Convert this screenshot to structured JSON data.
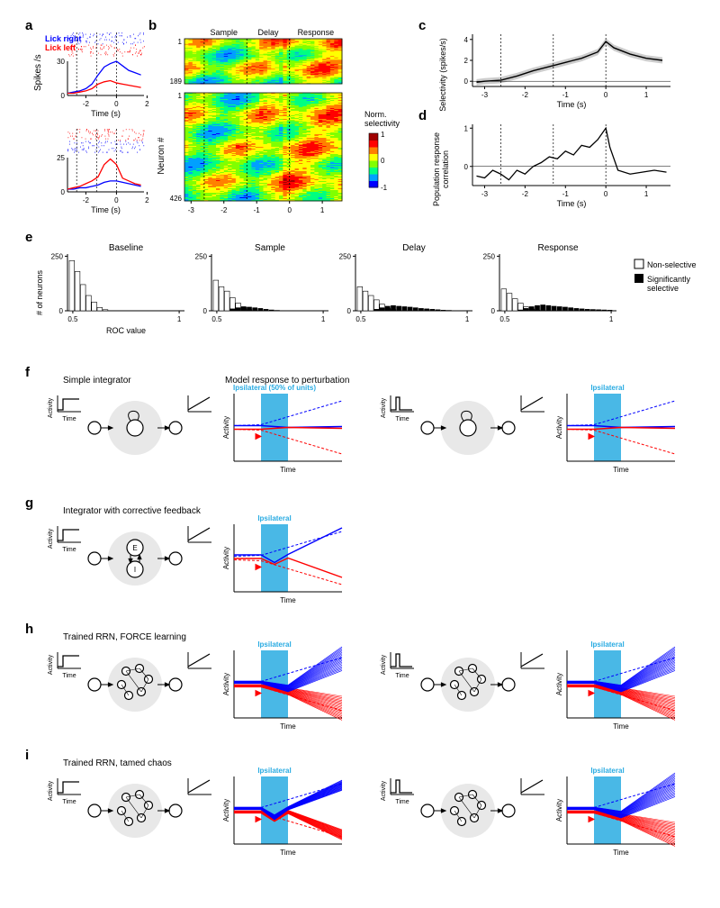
{
  "labels": {
    "a": "a",
    "b": "b",
    "c": "c",
    "d": "d",
    "e": "e",
    "f": "f",
    "g": "g",
    "h": "h",
    "i": "i"
  },
  "colors": {
    "blue": "#0000ff",
    "red": "#ff0000",
    "black": "#000000",
    "cyan_box": "#29abe2",
    "gray_shade": "#cccccc",
    "heatmap": [
      "#0000ff",
      "#00a0ff",
      "#00ff80",
      "#80ff00",
      "#ffff00",
      "#ff8000",
      "#ff0000",
      "#a00000"
    ]
  },
  "panel_a": {
    "lick_right_label": "Lick right",
    "lick_left_label": "Lick left",
    "y_label": "Spikes /s",
    "x_label": "Time (s)",
    "x_ticks": [
      -2,
      0,
      2
    ],
    "y_ticks_top": [
      0,
      30
    ],
    "y_ticks_bottom": [
      0,
      25
    ],
    "top_blue": [
      [
        -3.2,
        2
      ],
      [
        -2.8,
        3
      ],
      [
        -2.4,
        4
      ],
      [
        -2.0,
        6
      ],
      [
        -1.6,
        10
      ],
      [
        -1.2,
        18
      ],
      [
        -0.8,
        25
      ],
      [
        -0.4,
        28
      ],
      [
        0,
        30
      ],
      [
        0.4,
        26
      ],
      [
        0.8,
        22
      ],
      [
        1.2,
        20
      ],
      [
        1.6,
        18
      ]
    ],
    "top_red": [
      [
        -3.2,
        2
      ],
      [
        -2.8,
        2
      ],
      [
        -2.4,
        3
      ],
      [
        -2.0,
        4
      ],
      [
        -1.6,
        6
      ],
      [
        -1.2,
        10
      ],
      [
        -0.8,
        12
      ],
      [
        -0.4,
        13
      ],
      [
        0,
        11
      ],
      [
        0.4,
        10
      ],
      [
        0.8,
        9
      ],
      [
        1.2,
        8
      ],
      [
        1.6,
        7
      ]
    ],
    "bot_red": [
      [
        -3.2,
        2
      ],
      [
        -2.8,
        3
      ],
      [
        -2.4,
        4
      ],
      [
        -2.0,
        6
      ],
      [
        -1.6,
        8
      ],
      [
        -1.2,
        11
      ],
      [
        -0.8,
        20
      ],
      [
        -0.4,
        24
      ],
      [
        0,
        20
      ],
      [
        0.4,
        10
      ],
      [
        0.8,
        8
      ],
      [
        1.2,
        6
      ],
      [
        1.6,
        5
      ]
    ],
    "bot_blue": [
      [
        -3.2,
        2
      ],
      [
        -2.8,
        2
      ],
      [
        -2.4,
        3
      ],
      [
        -2.0,
        3
      ],
      [
        -1.6,
        4
      ],
      [
        -1.2,
        5
      ],
      [
        -0.8,
        7
      ],
      [
        -0.4,
        8
      ],
      [
        0,
        8
      ],
      [
        0.4,
        7
      ],
      [
        0.8,
        6
      ],
      [
        1.2,
        5
      ],
      [
        1.6,
        4
      ]
    ]
  },
  "panel_b": {
    "epochs": [
      "Sample",
      "Delay",
      "Response"
    ],
    "top_rows": 189,
    "bottom_rows": 426,
    "neuron_label": "Neuron #",
    "x_ticks": [
      -3,
      -2,
      -1,
      0,
      1
    ],
    "colorbar_label": "Norm.\nselectivity",
    "colorbar_ticks": [
      1,
      0,
      -1
    ],
    "vlines": [
      -2.6,
      -1.3,
      0
    ]
  },
  "panel_c": {
    "y_label": "Selectivity (spikes/s)",
    "x_label": "Time (s)",
    "x_ticks": [
      -3,
      -2,
      -1,
      0,
      1
    ],
    "y_ticks": [
      0,
      2,
      4
    ],
    "vlines": [
      -2.6,
      -1.3,
      0
    ],
    "line": [
      [
        -3.2,
        -0.1
      ],
      [
        -3.0,
        0
      ],
      [
        -2.6,
        0.1
      ],
      [
        -2.2,
        0.5
      ],
      [
        -1.8,
        1.0
      ],
      [
        -1.4,
        1.4
      ],
      [
        -1.0,
        1.8
      ],
      [
        -0.6,
        2.2
      ],
      [
        -0.2,
        2.8
      ],
      [
        0,
        3.8
      ],
      [
        0.2,
        3.2
      ],
      [
        0.6,
        2.6
      ],
      [
        1.0,
        2.2
      ],
      [
        1.4,
        2.0
      ]
    ]
  },
  "panel_d": {
    "y_label": "Population response\ncorrelation",
    "x_label": "Time (s)",
    "x_ticks": [
      -3,
      -2,
      -1,
      0,
      1
    ],
    "y_ticks": [
      0,
      1
    ],
    "vlines": [
      -2.6,
      -1.3,
      0
    ],
    "line": [
      [
        -3.2,
        -0.25
      ],
      [
        -3.0,
        -0.3
      ],
      [
        -2.8,
        -0.1
      ],
      [
        -2.6,
        -0.2
      ],
      [
        -2.4,
        -0.35
      ],
      [
        -2.2,
        -0.1
      ],
      [
        -2.0,
        -0.2
      ],
      [
        -1.8,
        0
      ],
      [
        -1.6,
        0.1
      ],
      [
        -1.4,
        0.25
      ],
      [
        -1.2,
        0.2
      ],
      [
        -1.0,
        0.4
      ],
      [
        -0.8,
        0.3
      ],
      [
        -0.6,
        0.55
      ],
      [
        -0.4,
        0.5
      ],
      [
        -0.2,
        0.7
      ],
      [
        0,
        1.0
      ],
      [
        0.1,
        0.5
      ],
      [
        0.3,
        -0.1
      ],
      [
        0.6,
        -0.2
      ],
      [
        0.9,
        -0.15
      ],
      [
        1.2,
        -0.1
      ],
      [
        1.5,
        -0.15
      ]
    ]
  },
  "panel_e": {
    "y_label": "# of neurons",
    "x_label": "ROC value",
    "titles": [
      "Baseline",
      "Sample",
      "Delay",
      "Response"
    ],
    "x_ticks": [
      0.5,
      1
    ],
    "y_ticks": [
      0,
      250
    ],
    "legend": [
      "Non-selective",
      "Significantly\nselective"
    ],
    "bars": {
      "baseline": {
        "ns": [
          230,
          180,
          120,
          70,
          40,
          15,
          5,
          0,
          0,
          0,
          0,
          0,
          0,
          0,
          0,
          0,
          0,
          0,
          0,
          0
        ],
        "sel": [
          0,
          0,
          0,
          0,
          0,
          0,
          0,
          0,
          0,
          0,
          0,
          0,
          0,
          0,
          0,
          0,
          0,
          0,
          0,
          0
        ]
      },
      "sample": {
        "ns": [
          140,
          110,
          90,
          60,
          35,
          15,
          5,
          0,
          0,
          0,
          0,
          0,
          0,
          0,
          0,
          0,
          0,
          0,
          0,
          0
        ],
        "sel": [
          0,
          0,
          0,
          10,
          15,
          20,
          18,
          15,
          12,
          8,
          5,
          3,
          2,
          1,
          0,
          0,
          0,
          0,
          0,
          0
        ]
      },
      "delay": {
        "ns": [
          110,
          90,
          70,
          50,
          30,
          12,
          5,
          0,
          0,
          0,
          0,
          0,
          0,
          0,
          0,
          0,
          0,
          0,
          0,
          0
        ],
        "sel": [
          0,
          0,
          0,
          8,
          15,
          22,
          25,
          22,
          20,
          18,
          15,
          12,
          10,
          8,
          6,
          4,
          3,
          2,
          1,
          0
        ]
      },
      "response": {
        "ns": [
          100,
          80,
          55,
          35,
          18,
          8,
          3,
          0,
          0,
          0,
          0,
          0,
          0,
          0,
          0,
          0,
          0,
          0,
          0,
          0
        ],
        "sel": [
          0,
          0,
          0,
          5,
          12,
          20,
          25,
          28,
          25,
          22,
          20,
          18,
          15,
          12,
          10,
          8,
          7,
          6,
          5,
          4
        ]
      }
    }
  },
  "models": {
    "perturbation_label": "Ipsilateral",
    "perturbation_label_50": "Ipsilateral (50% of units)",
    "activity_label": "Activity",
    "time_label": "Time",
    "f_title": "Simple integrator",
    "f_subtitle": "Model response to perturbation",
    "g_title": "Integrator with corrective feedback",
    "h_title": "Trained RRN, FORCE learning",
    "i_title": "Trained RRN, tamed chaos",
    "g_node_E": "E",
    "g_node_I": "I"
  }
}
